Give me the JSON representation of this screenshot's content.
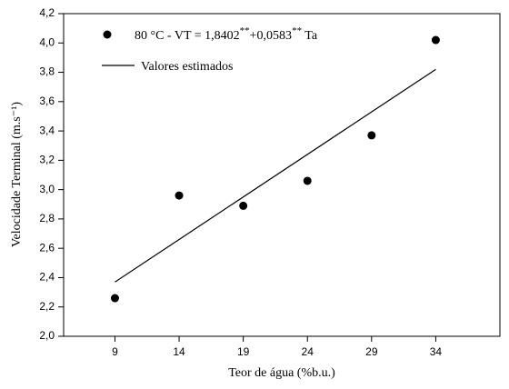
{
  "chart_data": {
    "type": "scatter",
    "xlabel": "Teor de água (%b.u.)",
    "ylabel": "Velocidade Terminal (m.s⁻¹)",
    "xlim": [
      5,
      39
    ],
    "ylim": [
      2.0,
      4.2
    ],
    "xticks": [
      9,
      14,
      19,
      24,
      29,
      34
    ],
    "yticks": [
      {
        "value": 2.0,
        "label": "2,0"
      },
      {
        "value": 2.2,
        "label": "2,2"
      },
      {
        "value": 2.4,
        "label": "2,4"
      },
      {
        "value": 2.6,
        "label": "2,6"
      },
      {
        "value": 2.8,
        "label": "2,8"
      },
      {
        "value": 3.0,
        "label": "3,0"
      },
      {
        "value": 3.2,
        "label": "3,2"
      },
      {
        "value": 3.4,
        "label": "3,4"
      },
      {
        "value": 3.6,
        "label": "3,6"
      },
      {
        "value": 3.8,
        "label": "3,8"
      },
      {
        "value": 4.0,
        "label": "4,0"
      },
      {
        "value": 4.2,
        "label": "4,2"
      }
    ],
    "series": [
      {
        "name": "80 °C -  VT = 1,8402**+0,0583** Ta",
        "kind": "points",
        "color": "#000000",
        "x": [
          9,
          14,
          19,
          24,
          29,
          34
        ],
        "values": [
          2.26,
          2.96,
          2.89,
          3.06,
          3.37,
          4.02
        ]
      },
      {
        "name": "Valores estimados",
        "kind": "line",
        "color": "#000000",
        "x": [
          9,
          34
        ],
        "values": [
          2.37,
          3.82
        ]
      }
    ]
  }
}
